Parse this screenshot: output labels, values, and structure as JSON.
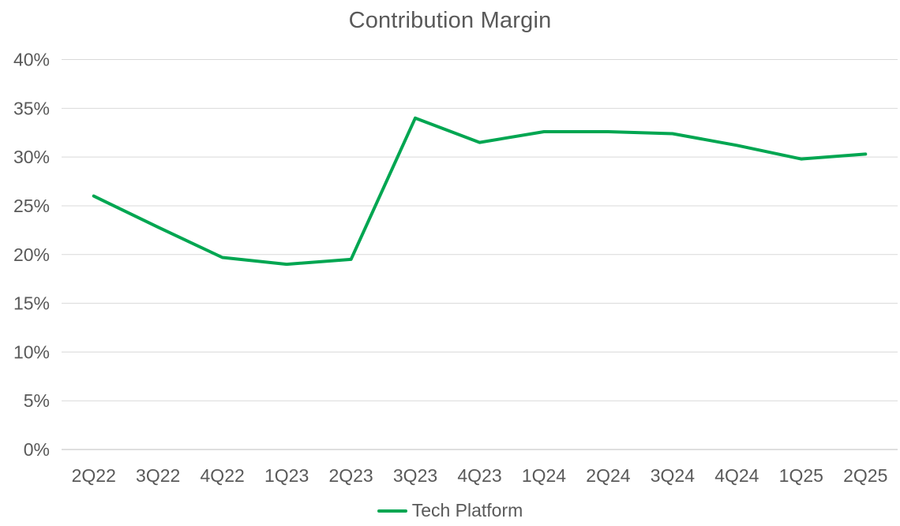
{
  "chart": {
    "title": "Contribution Margin",
    "legend_items": [
      {
        "label": "Tech Platform",
        "swatch": "line",
        "color": "#00a651"
      }
    ]
  },
  "chart_data": {
    "type": "line",
    "title": "Contribution Margin",
    "categories": [
      "2Q22",
      "3Q22",
      "4Q22",
      "1Q23",
      "2Q23",
      "3Q23",
      "4Q23",
      "1Q24",
      "2Q24",
      "3Q24",
      "4Q24",
      "1Q25",
      "2Q25"
    ],
    "series": [
      {
        "name": "Tech Platform",
        "color": "#00a651",
        "values": [
          26.0,
          22.8,
          19.7,
          19.0,
          19.5,
          34.0,
          31.5,
          32.6,
          32.6,
          32.4,
          31.2,
          29.8,
          30.3
        ]
      }
    ],
    "xlabel": "",
    "ylabel": "",
    "ylim": [
      0,
      40
    ],
    "ytick_step": 5,
    "ytick_labels": [
      "0%",
      "5%",
      "10%",
      "15%",
      "20%",
      "25%",
      "30%",
      "35%",
      "40%"
    ],
    "grid": true,
    "legend_position": "bottom",
    "colors": {
      "title_text": "#595959",
      "tick_text": "#595959",
      "gridline": "#d9d9d9",
      "axis_line": "#bfbfbf",
      "background": "#ffffff"
    }
  }
}
